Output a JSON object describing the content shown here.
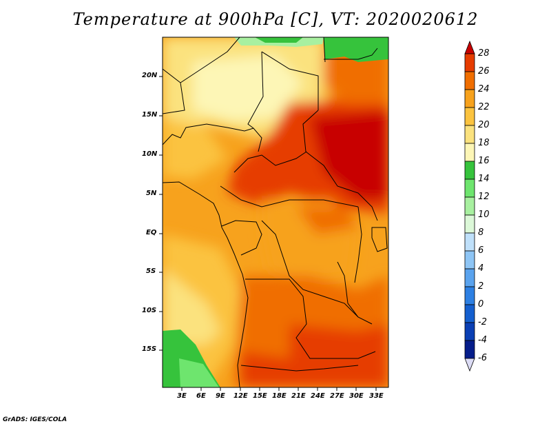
{
  "title": "Temperature at 900hPa [C], VT: 2020020612",
  "credit": "GrADS: IGES/COLA",
  "map": {
    "lat_ticks": [
      "20N",
      "15N",
      "10N",
      "5N",
      "EQ",
      "5S",
      "10S",
      "15S"
    ],
    "lon_ticks": [
      "3E",
      "6E",
      "9E",
      "12E",
      "15E",
      "18E",
      "21E",
      "24E",
      "27E",
      "30E",
      "33E"
    ]
  },
  "colorbar": {
    "labels": [
      "28",
      "26",
      "24",
      "22",
      "20",
      "18",
      "16",
      "14",
      "12",
      "10",
      "8",
      "6",
      "4",
      "2",
      "0",
      "-2",
      "-4",
      "-6"
    ],
    "colors": [
      "#c80000",
      "#e63c00",
      "#f06e00",
      "#f7a21d",
      "#fbc33f",
      "#fbe27e",
      "#fdf6b6",
      "#36c33c",
      "#6ee56e",
      "#a8f0a0",
      "#dcf8d8",
      "#bfe0fa",
      "#8ec5f5",
      "#5aa3ee",
      "#2d80e3",
      "#145fcf",
      "#0a3fb4",
      "#051d8a",
      "#00005a"
    ]
  }
}
